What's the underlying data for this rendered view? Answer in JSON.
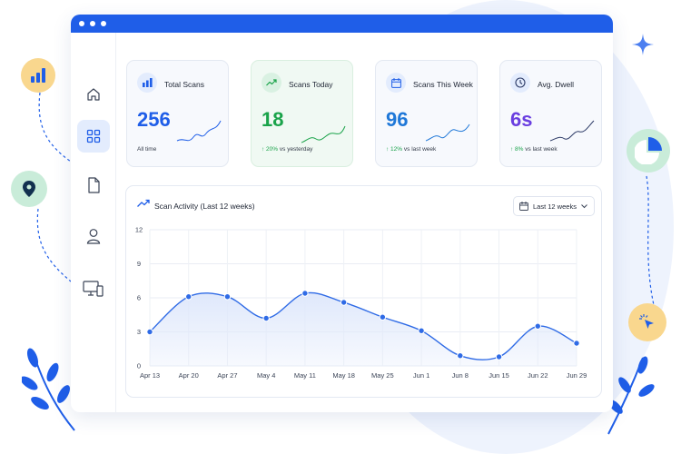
{
  "window": {
    "title_dots": 3
  },
  "sidebar": {
    "items": [
      {
        "name": "home",
        "icon": "home-icon",
        "active": false
      },
      {
        "name": "dashboard",
        "icon": "grid-icon",
        "active": true
      },
      {
        "name": "documents",
        "icon": "document-icon",
        "active": false
      },
      {
        "name": "profile",
        "icon": "user-icon",
        "active": false
      },
      {
        "name": "devices",
        "icon": "devices-icon",
        "active": false
      }
    ]
  },
  "stats": [
    {
      "title": "Total Scans",
      "value": "256",
      "sub_delta": "",
      "sub_text": "All time",
      "icon": "bar-chart-icon",
      "value_color": "#1f5ee8"
    },
    {
      "title": "Scans Today",
      "value": "18",
      "sub_delta": "↑ 20%",
      "sub_text": " vs yesterday",
      "icon": "trend-up-icon",
      "value_color": "#1aa34a"
    },
    {
      "title": "Scans This Week",
      "value": "96",
      "sub_delta": "↑ 12%",
      "sub_text": " vs last week",
      "icon": "calendar-icon",
      "value_color": "#1f78d8"
    },
    {
      "title": "Avg. Dwell",
      "value": "6s",
      "sub_delta": "↑ 8%",
      "sub_text": " vs last week",
      "icon": "clock-icon",
      "value_color": "#6a3fe0"
    }
  ],
  "activity": {
    "title": "Scan Activity (Last 12 weeks)",
    "range_label": "Last 12 weeks"
  },
  "chart_data": {
    "type": "area",
    "title": "Scan Activity (Last 12 weeks)",
    "categories": [
      "Apr 13",
      "Apr 20",
      "Apr 27",
      "May 4",
      "May 11",
      "May 18",
      "May 25",
      "Jun 1",
      "Jun 8",
      "Jun 15",
      "Jun 22",
      "Jun 29"
    ],
    "values": [
      3,
      6.1,
      6.1,
      4.2,
      6.4,
      5.6,
      4.3,
      3.1,
      0.9,
      0.8,
      3.5,
      2
    ],
    "y_ticks": [
      0,
      3,
      6,
      9,
      12
    ],
    "ylim": [
      0,
      12
    ],
    "grid": true,
    "colors": {
      "line": "#2f6be6",
      "fill": "#dfe8fb"
    }
  },
  "colors": {
    "accent": "#1f5ee8",
    "green": "#1aa34a",
    "purple": "#6a3fe0",
    "muted": "#333a48"
  }
}
